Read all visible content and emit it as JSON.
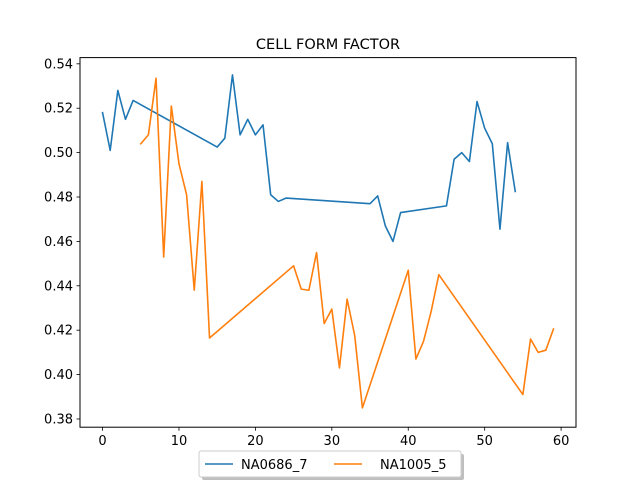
{
  "chart_data": {
    "type": "line",
    "title": "CELL FORM FACTOR",
    "xlabel": "",
    "ylabel": "",
    "xlim": [
      -2.95,
      61.95
    ],
    "ylim": [
      0.3763,
      0.5428
    ],
    "xticks": [
      0,
      10,
      20,
      30,
      40,
      50,
      60
    ],
    "yticks": [
      0.38,
      0.4,
      0.42,
      0.44,
      0.46,
      0.48,
      0.5,
      0.52,
      0.54
    ],
    "ytick_labels": [
      "0.38",
      "0.40",
      "0.42",
      "0.44",
      "0.46",
      "0.48",
      "0.50",
      "0.52",
      "0.54"
    ],
    "grid": false,
    "legend_position": "bottom-center",
    "series": [
      {
        "name": "NA0686_7",
        "color": "#1f77b4",
        "x": [
          0,
          1,
          2,
          3,
          4,
          15,
          16,
          17,
          18,
          19,
          20,
          21,
          22,
          23,
          24,
          35,
          36,
          37,
          38,
          39,
          45,
          46,
          47,
          48,
          49,
          50,
          51,
          52,
          53,
          54
        ],
        "y": [
          0.518,
          0.501,
          0.528,
          0.515,
          0.5235,
          0.5025,
          0.5065,
          0.535,
          0.508,
          0.515,
          0.508,
          0.5125,
          0.481,
          0.478,
          0.4795,
          0.477,
          0.4805,
          0.467,
          0.46,
          0.473,
          0.476,
          0.497,
          0.5,
          0.496,
          0.523,
          0.511,
          0.504,
          0.4655,
          0.5045,
          0.4825
        ]
      },
      {
        "name": "NA1005_5",
        "color": "#ff7f0e",
        "x": [
          5,
          6,
          7,
          8,
          9,
          10,
          11,
          12,
          13,
          14,
          25,
          26,
          27,
          28,
          29,
          30,
          31,
          32,
          33,
          34,
          40,
          41,
          42,
          43,
          44,
          55,
          56,
          57,
          58,
          59
        ],
        "y": [
          0.504,
          0.508,
          0.5335,
          0.453,
          0.521,
          0.495,
          0.481,
          0.438,
          0.487,
          0.4165,
          0.449,
          0.4385,
          0.438,
          0.455,
          0.423,
          0.4295,
          0.403,
          0.434,
          0.4175,
          0.385,
          0.447,
          0.407,
          0.415,
          0.4285,
          0.445,
          0.391,
          0.416,
          0.41,
          0.411,
          0.4205
        ]
      }
    ]
  }
}
